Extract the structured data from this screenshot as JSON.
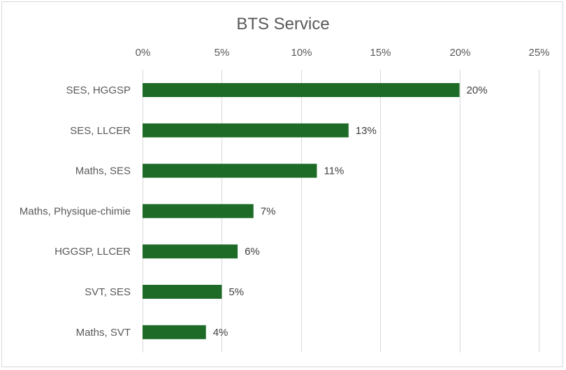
{
  "chart_data": {
    "type": "bar",
    "orientation": "horizontal",
    "title": "BTS Service",
    "categories": [
      "SES, HGGSP",
      "SES, LLCER",
      "Maths, SES",
      "Maths, Physique-chimie",
      "HGGSP, LLCER",
      "SVT, SES",
      "Maths, SVT"
    ],
    "values": [
      20,
      13,
      11,
      7,
      6,
      5,
      4
    ],
    "data_labels": [
      "20%",
      "13%",
      "11%",
      "7%",
      "6%",
      "5%",
      "4%"
    ],
    "xlim": [
      0,
      25
    ],
    "xticks": [
      0,
      5,
      10,
      15,
      20,
      25
    ],
    "xtick_labels": [
      "0%",
      "5%",
      "10%",
      "15%",
      "20%",
      "25%"
    ],
    "x_axis_position": "top",
    "grid": true,
    "legend": "none",
    "bar_color": "#1e6b28"
  }
}
